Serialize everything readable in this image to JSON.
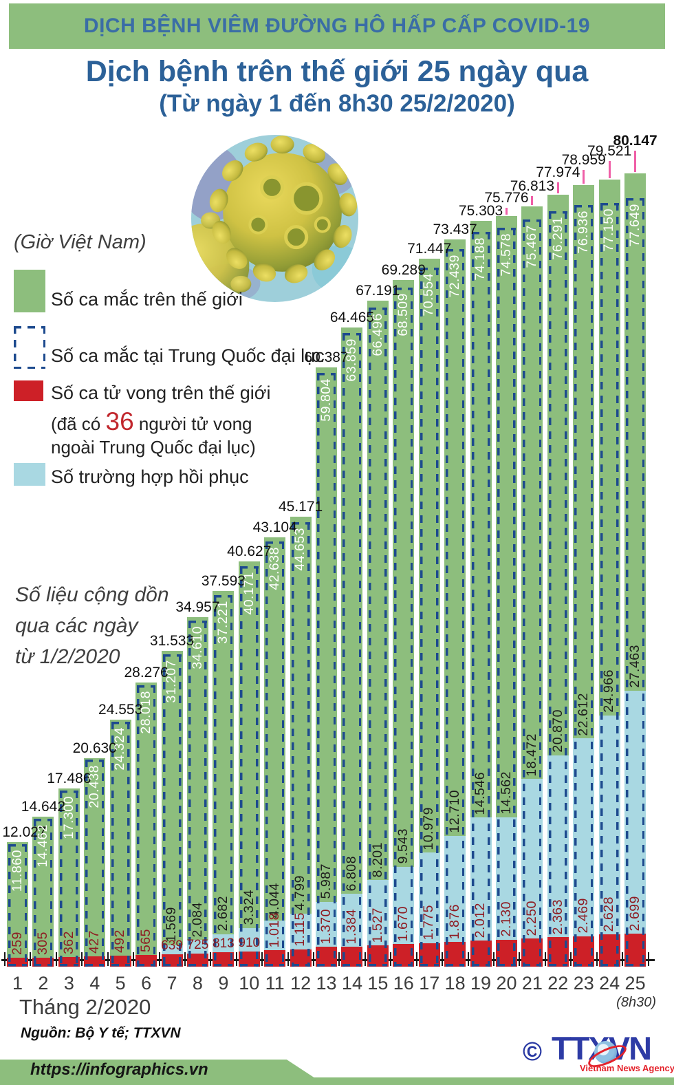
{
  "header": {
    "banner": "DỊCH BỆNH VIÊM ĐƯỜNG HÔ HẤP CẤP COVID-19"
  },
  "title": {
    "main": "Dịch bệnh trên thế giới 25 ngày qua",
    "sub": "(Từ ngày 1 đến 8h30 25/2/2020)",
    "timezone": "(Giờ Việt Nam)"
  },
  "legend": {
    "world_label": "Số ca mắc trên thế giới",
    "china_label": "Số ca mắc tại Trung Quốc đại lục",
    "deaths_label": "Số ca tử vong trên thế giới",
    "deaths_note": {
      "prefix": "(đã có ",
      "number": "36",
      "suffix": " người tử vong ngoài Trung Quốc đại lục)"
    },
    "recovered_label": "Số trường hợp hồi phục"
  },
  "note": {
    "line1": "Số liệu cộng dồn",
    "line2": "qua các ngày",
    "line3": "từ 1/2/2020"
  },
  "axis": {
    "month_label": "Tháng 2/2020",
    "last_day_note": "(8h30)"
  },
  "footer": {
    "source": "Nguồn: Bộ Y tế; TTXVN",
    "url": "https://infographics.vn",
    "copyright": "©",
    "logo_text": "TTXVN",
    "logo_tagline": "Vietnam News Agency"
  },
  "colors": {
    "bar_world_green": "#8dbe7d",
    "bar_china_outline_navy": "#1d4a8e",
    "bar_deaths_red": "#cd2027",
    "bar_recovered_blue": "#a9d8e2",
    "leader_line_pink": "#ef5fa7",
    "title_blue": "#2c6198",
    "death_label_dark_red": "#8e1b22"
  },
  "chart_data": {
    "type": "bar",
    "title": "Dịch bệnh trên thế giới 25 ngày qua (Từ ngày 1 đến 8h30 25/2/2020)",
    "xlabel": "Tháng 2/2020",
    "ylim": [
      0,
      80147
    ],
    "grid": false,
    "legend_position": "left",
    "categories": [
      1,
      2,
      3,
      4,
      5,
      6,
      7,
      8,
      9,
      10,
      11,
      12,
      13,
      14,
      15,
      16,
      17,
      18,
      19,
      20,
      21,
      22,
      23,
      24,
      25
    ],
    "series": [
      {
        "name": "Số ca mắc trên thế giới",
        "values": [
          12027,
          14642,
          17486,
          20630,
          24553,
          28276,
          31533,
          34957,
          37593,
          40627,
          43104,
          45171,
          60387,
          64465,
          67191,
          69289,
          71447,
          73437,
          75303,
          75776,
          76813,
          77974,
          78959,
          79521,
          80147
        ]
      },
      {
        "name": "Số ca mắc tại Trung Quốc đại lục",
        "values": [
          11860,
          14462,
          17300,
          20438,
          24324,
          28018,
          31207,
          34610,
          37221,
          40171,
          42638,
          44653,
          59804,
          63859,
          66496,
          68509,
          70554,
          72439,
          74188,
          74578,
          75467,
          76291,
          76936,
          77150,
          77649
        ]
      },
      {
        "name": "Số trường hợp hồi phục",
        "values": [
          null,
          null,
          null,
          null,
          null,
          null,
          1569,
          2084,
          2682,
          3324,
          4044,
          4799,
          5987,
          6808,
          8201,
          9543,
          10979,
          12710,
          14546,
          14562,
          18472,
          20870,
          22612,
          24966,
          27463
        ]
      },
      {
        "name": "Số ca tử vong trên thế giới",
        "values": [
          259,
          305,
          362,
          427,
          492,
          565,
          639,
          725,
          813,
          910,
          1018,
          1115,
          1370,
          1384,
          1527,
          1670,
          1775,
          1876,
          2012,
          2130,
          2250,
          2363,
          2469,
          2628,
          2699
        ]
      }
    ]
  }
}
